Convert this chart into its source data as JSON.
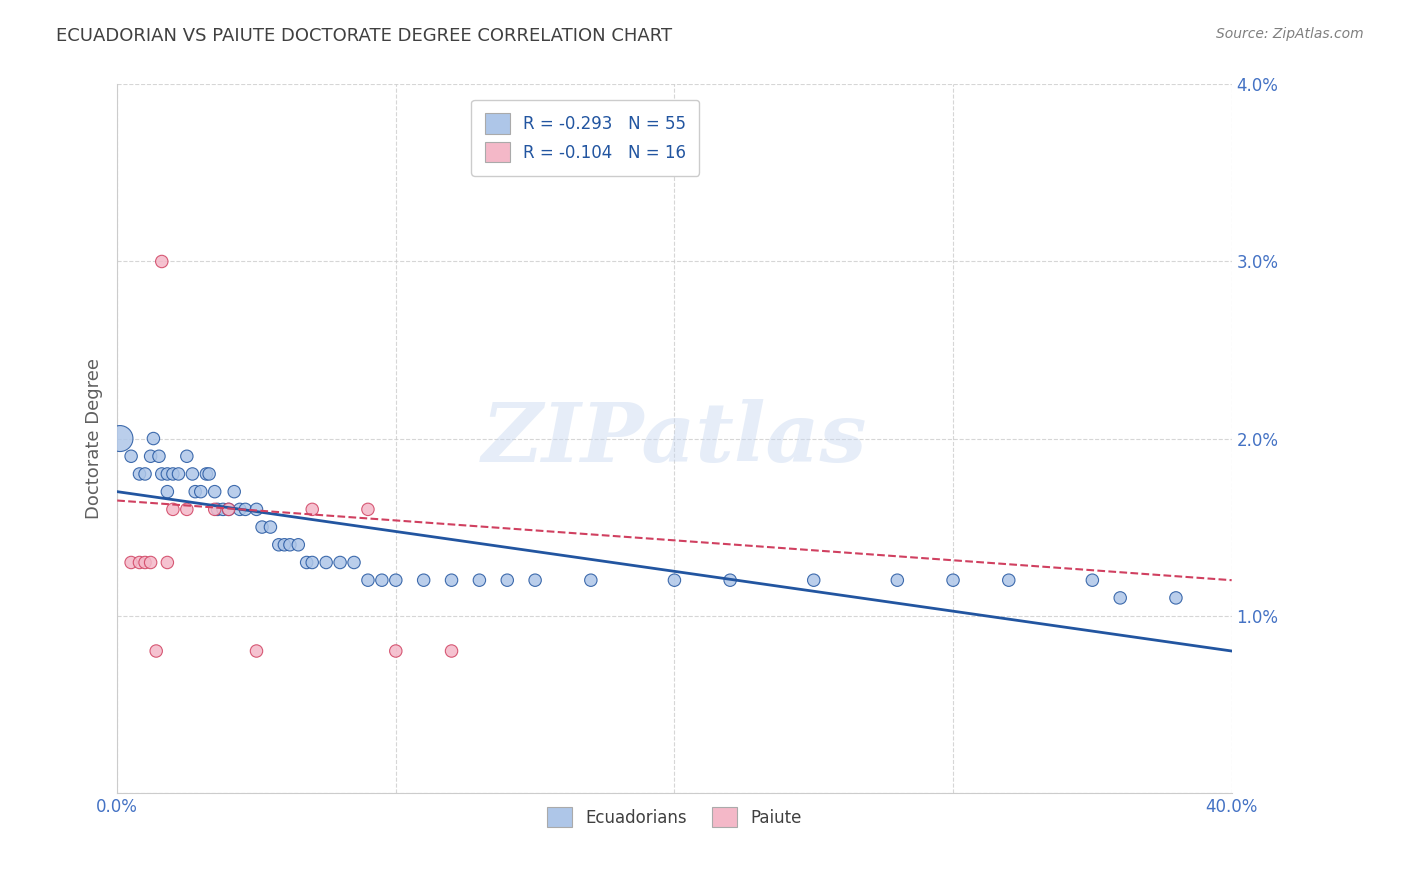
{
  "title": "ECUADORIAN VS PAIUTE DOCTORATE DEGREE CORRELATION CHART",
  "ylabel": "Doctorate Degree",
  "source": "Source: ZipAtlas.com",
  "watermark": "ZIPatlas",
  "xlim": [
    0.0,
    0.4
  ],
  "ylim": [
    0.0,
    0.04
  ],
  "xticks": [
    0.0,
    0.1,
    0.2,
    0.3,
    0.4
  ],
  "xtick_labels": [
    "0.0%",
    "",
    "",
    "",
    "40.0%"
  ],
  "yticks": [
    0.0,
    0.01,
    0.02,
    0.03,
    0.04
  ],
  "ytick_labels": [
    "",
    "1.0%",
    "2.0%",
    "3.0%",
    "4.0%"
  ],
  "blue_color": "#aec6e8",
  "pink_color": "#f4b8c8",
  "blue_line_color": "#2255a0",
  "pink_line_color": "#d04060",
  "legend_blue_label": "R = -0.293   N = 55",
  "legend_pink_label": "R = -0.104   N = 16",
  "legend_bottom_blue": "Ecuadorians",
  "legend_bottom_pink": "Paiute",
  "ecuadorians_x": [
    0.001,
    0.005,
    0.008,
    0.01,
    0.012,
    0.013,
    0.015,
    0.016,
    0.018,
    0.018,
    0.02,
    0.022,
    0.025,
    0.027,
    0.028,
    0.03,
    0.032,
    0.033,
    0.035,
    0.036,
    0.038,
    0.04,
    0.042,
    0.044,
    0.046,
    0.05,
    0.052,
    0.055,
    0.058,
    0.06,
    0.062,
    0.065,
    0.068,
    0.07,
    0.075,
    0.08,
    0.085,
    0.09,
    0.095,
    0.1,
    0.11,
    0.12,
    0.13,
    0.14,
    0.15,
    0.17,
    0.2,
    0.22,
    0.25,
    0.28,
    0.3,
    0.32,
    0.35,
    0.36,
    0.38
  ],
  "ecuadorians_y": [
    0.02,
    0.019,
    0.018,
    0.018,
    0.019,
    0.02,
    0.019,
    0.018,
    0.018,
    0.017,
    0.018,
    0.018,
    0.019,
    0.018,
    0.017,
    0.017,
    0.018,
    0.018,
    0.017,
    0.016,
    0.016,
    0.016,
    0.017,
    0.016,
    0.016,
    0.016,
    0.015,
    0.015,
    0.014,
    0.014,
    0.014,
    0.014,
    0.013,
    0.013,
    0.013,
    0.013,
    0.013,
    0.012,
    0.012,
    0.012,
    0.012,
    0.012,
    0.012,
    0.012,
    0.012,
    0.012,
    0.012,
    0.012,
    0.012,
    0.012,
    0.012,
    0.012,
    0.012,
    0.011,
    0.011
  ],
  "ecuadorians_size": [
    350,
    80,
    80,
    80,
    80,
    80,
    80,
    80,
    80,
    80,
    80,
    80,
    80,
    80,
    80,
    80,
    80,
    80,
    80,
    80,
    80,
    80,
    80,
    80,
    80,
    80,
    80,
    80,
    80,
    80,
    80,
    80,
    80,
    80,
    80,
    80,
    80,
    80,
    80,
    80,
    80,
    80,
    80,
    80,
    80,
    80,
    80,
    80,
    80,
    80,
    80,
    80,
    80,
    80,
    80
  ],
  "paiute_x": [
    0.005,
    0.008,
    0.01,
    0.012,
    0.014,
    0.016,
    0.018,
    0.02,
    0.025,
    0.035,
    0.04,
    0.05,
    0.07,
    0.09,
    0.1,
    0.12
  ],
  "paiute_y": [
    0.013,
    0.013,
    0.013,
    0.013,
    0.008,
    0.03,
    0.013,
    0.016,
    0.016,
    0.016,
    0.016,
    0.008,
    0.016,
    0.016,
    0.008,
    0.008
  ],
  "paiute_size": [
    80,
    80,
    80,
    80,
    80,
    80,
    80,
    80,
    80,
    80,
    80,
    80,
    80,
    80,
    80,
    80
  ],
  "grid_color": "#cccccc",
  "background_color": "#ffffff",
  "title_color": "#404040",
  "axis_label_color": "#606060",
  "tick_color": "#4472c4",
  "source_color": "#808080"
}
